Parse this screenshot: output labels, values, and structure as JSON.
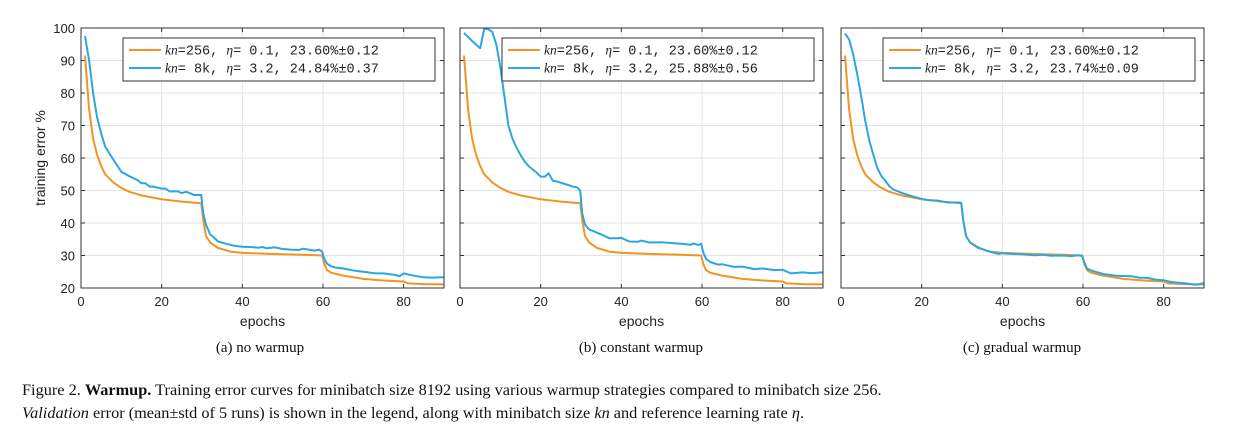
{
  "chart_data": [
    {
      "id": "a",
      "type": "line",
      "subcaption": "(a) no warmup",
      "xlabel": "epochs",
      "ylabel": "training error %",
      "xlim": [
        0,
        90
      ],
      "ylim": [
        20,
        100
      ],
      "xticks": [
        "0",
        "20",
        "40",
        "60",
        "80"
      ],
      "yticks": [
        "20",
        "30",
        "40",
        "50",
        "60",
        "70",
        "80",
        "90",
        "100"
      ],
      "grid": true,
      "legend_position": "top-right",
      "series": [
        {
          "name": "kn=256, η= 0.1, 23.60%±0.12",
          "legend": {
            "kn": "256",
            "eta": "0.1",
            "val": "23.60%±0.12"
          },
          "color": "#f39324",
          "x": [
            1,
            2,
            3,
            4,
            5,
            6,
            8,
            10,
            12,
            15,
            20,
            25,
            29.8,
            30.3,
            31,
            32,
            34,
            37,
            40,
            45,
            50,
            55,
            59.8,
            60.3,
            61,
            62,
            65,
            70,
            75,
            80,
            81,
            85,
            90
          ],
          "y": [
            91.5,
            75,
            66,
            61,
            57.5,
            55,
            52.5,
            50.8,
            49.6,
            48.5,
            47.3,
            46.6,
            46.1,
            41,
            36,
            34,
            32.3,
            31.2,
            30.8,
            30.6,
            30.4,
            30.2,
            30,
            27.5,
            25.5,
            24.7,
            23.8,
            22.8,
            22.3,
            22,
            21.4,
            21.2,
            21.1
          ]
        },
        {
          "name": "kn= 8k, η= 3.2, 24.84%±0.37",
          "legend": {
            "kn": " 8k",
            "eta": "3.2",
            "val": "24.84%±0.37"
          },
          "color": "#2ba7e0",
          "x": [
            1,
            2,
            3,
            4,
            5,
            6,
            8,
            10,
            12,
            14,
            15,
            16,
            17,
            18,
            20,
            21,
            22,
            24,
            25,
            26,
            27,
            28,
            29.8,
            30.3,
            31,
            32,
            33,
            34,
            36,
            38,
            40,
            42,
            44,
            45,
            46,
            48,
            50,
            52,
            54,
            55,
            57,
            58,
            59,
            59.8,
            60.3,
            61,
            62,
            63,
            65,
            68,
            70,
            73,
            75,
            78,
            79,
            80,
            82,
            85,
            87,
            90
          ],
          "y": [
            97.5,
            90,
            80,
            72.5,
            67.5,
            63.5,
            59.5,
            55.8,
            54.4,
            53.2,
            52.2,
            52.2,
            51.2,
            51.2,
            50.6,
            50.6,
            49.7,
            49.8,
            49.2,
            49.6,
            49.2,
            48.6,
            48.6,
            43,
            39.5,
            36.5,
            35.5,
            34.3,
            33.6,
            33,
            32.7,
            32.6,
            32.4,
            32.6,
            32.2,
            32.5,
            32,
            31.8,
            31.7,
            32.1,
            31.7,
            31.5,
            31.8,
            31.2,
            29,
            27.5,
            26.7,
            26.3,
            26,
            25.3,
            25,
            24.5,
            24.5,
            24,
            23.6,
            24.5,
            23.9,
            23.3,
            23.2,
            23.3
          ]
        }
      ]
    },
    {
      "id": "b",
      "type": "line",
      "subcaption": "(b) constant warmup",
      "xlabel": "epochs",
      "ylabel": "",
      "xlim": [
        0,
        90
      ],
      "ylim": [
        20,
        100
      ],
      "xticks": [
        "0",
        "20",
        "40",
        "60",
        "80"
      ],
      "yticks": [],
      "grid": true,
      "legend_position": "top-right",
      "series": [
        {
          "name": "kn=256, η= 0.1, 23.60%±0.12",
          "legend": {
            "kn": "256",
            "eta": "0.1",
            "val": "23.60%±0.12"
          },
          "color": "#f39324",
          "x": [
            1,
            2,
            3,
            4,
            5,
            6,
            8,
            10,
            12,
            15,
            20,
            25,
            29.8,
            30.3,
            31,
            32,
            34,
            37,
            40,
            45,
            50,
            55,
            59.8,
            60.3,
            61,
            62,
            65,
            70,
            75,
            80,
            81,
            85,
            90
          ],
          "y": [
            91.5,
            75,
            66,
            61,
            57.5,
            55,
            52.5,
            50.8,
            49.6,
            48.5,
            47.3,
            46.6,
            46.1,
            41,
            36,
            34,
            32.3,
            31.2,
            30.8,
            30.6,
            30.4,
            30.2,
            30,
            27.5,
            25.5,
            24.7,
            23.8,
            22.8,
            22.3,
            22,
            21.4,
            21.2,
            21.1
          ]
        },
        {
          "name": "kn= 8k, η= 3.2, 25.88%±0.56",
          "legend": {
            "kn": " 8k",
            "eta": "3.2",
            "val": "25.88%±0.56"
          },
          "color": "#2ba7e0",
          "x": [
            1,
            3,
            5,
            6,
            7,
            8,
            9,
            10,
            11,
            12,
            13,
            14,
            15,
            16,
            17,
            18,
            19,
            20,
            21,
            22,
            23,
            24,
            26,
            28,
            29,
            29.8,
            30.3,
            31,
            32,
            33,
            35,
            37,
            39,
            40,
            42,
            44,
            45,
            47,
            50,
            53,
            55,
            57,
            58,
            59,
            59.8,
            60.3,
            61,
            62,
            63,
            64,
            65,
            68,
            70,
            73,
            75,
            78,
            80,
            82,
            85,
            87,
            90
          ],
          "y": [
            98.5,
            96,
            93.8,
            99.8,
            99.6,
            98.8,
            95,
            88,
            79,
            70,
            66,
            63.2,
            61,
            59,
            57.5,
            56.5,
            55.5,
            54.3,
            54.2,
            55.3,
            53,
            52.8,
            52,
            51.2,
            51,
            50,
            43,
            39.5,
            38,
            37.5,
            36.5,
            35.3,
            35.3,
            35.4,
            34.3,
            34.2,
            34.6,
            34,
            34.1,
            33.8,
            33.6,
            33.3,
            33.7,
            33.2,
            33.6,
            31,
            29,
            28,
            27.6,
            27.2,
            27.3,
            26.5,
            26.6,
            25.8,
            26,
            25.5,
            25.6,
            24.5,
            24.8,
            24.6,
            24.8
          ]
        }
      ]
    },
    {
      "id": "c",
      "type": "line",
      "subcaption": "(c) gradual warmup",
      "xlabel": "epochs",
      "ylabel": "",
      "xlim": [
        0,
        90
      ],
      "ylim": [
        20,
        100
      ],
      "xticks": [
        "0",
        "20",
        "40",
        "60",
        "80"
      ],
      "yticks": [],
      "grid": true,
      "legend_position": "top-right",
      "series": [
        {
          "name": "kn=256, η= 0.1, 23.60%±0.12",
          "legend": {
            "kn": "256",
            "eta": "0.1",
            "val": "23.60%±0.12"
          },
          "color": "#f39324",
          "x": [
            1,
            2,
            3,
            4,
            5,
            6,
            8,
            10,
            12,
            15,
            20,
            25,
            29.8,
            30.3,
            31,
            32,
            34,
            37,
            40,
            45,
            50,
            55,
            59.8,
            60.3,
            61,
            62,
            65,
            70,
            75,
            80,
            81,
            85,
            90
          ],
          "y": [
            91.5,
            75,
            66,
            61,
            57.5,
            55,
            52.5,
            50.8,
            49.6,
            48.5,
            47.3,
            46.6,
            46.1,
            41,
            36,
            34,
            32.3,
            31.2,
            30.8,
            30.6,
            30.4,
            30.2,
            30,
            27.5,
            25.5,
            24.7,
            23.8,
            22.8,
            22.3,
            22,
            21.4,
            21.2,
            21.1
          ]
        },
        {
          "name": "kn= 8k, η= 3.2, 23.74%±0.09",
          "legend": {
            "kn": " 8k",
            "eta": "3.2",
            "val": "23.74%±0.09"
          },
          "color": "#2ba7e0",
          "x": [
            1,
            2,
            3,
            4,
            5,
            6,
            7,
            8,
            9,
            10,
            11,
            12,
            13,
            15,
            17,
            18,
            19,
            20,
            22,
            24,
            26,
            27,
            29,
            29.8,
            30.3,
            31,
            32,
            34,
            36,
            39,
            40,
            42,
            45,
            48,
            50,
            52,
            55,
            57,
            59,
            59.8,
            60.3,
            61,
            62,
            65,
            68,
            70,
            72,
            74,
            76,
            78,
            80,
            82,
            85,
            88,
            90
          ],
          "y": [
            98.3,
            96.5,
            92,
            86,
            79,
            71.5,
            65.5,
            61,
            57,
            54.5,
            53,
            51.3,
            50.3,
            49.3,
            48.5,
            48.1,
            47.8,
            47.4,
            47,
            46.9,
            46.4,
            46.3,
            46.3,
            46.2,
            41,
            36,
            34,
            32.5,
            31.5,
            30.5,
            30.7,
            30.5,
            30.4,
            30.1,
            30.2,
            29.9,
            30,
            29.8,
            30.1,
            29.8,
            28,
            26,
            25.4,
            24.3,
            23.8,
            23.7,
            23.6,
            23.2,
            23.1,
            22.6,
            22.4,
            21.8,
            21.5,
            21,
            21.5
          ]
        }
      ]
    }
  ],
  "caption": {
    "figure_label": "Figure 2.",
    "title": "Warmup.",
    "line1_text": " Training error curves for minibatch size 8192 using various warmup strategies compared to minibatch size 256.",
    "line2_italic": "Validation",
    "line2_text": " error (mean±std of 5 runs) is shown in the legend, along with minibatch size ",
    "line2_kn": "kn",
    "line2_text2": " and reference learning rate ",
    "line2_eta": "η",
    "line2_end": "."
  }
}
